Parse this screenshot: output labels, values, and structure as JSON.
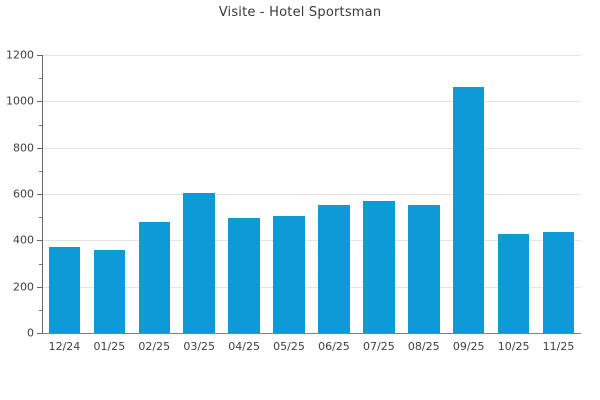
{
  "chart_data": {
    "type": "bar",
    "title": "Visite - Hotel Sportsman",
    "xlabel": "",
    "ylabel": "",
    "categories": [
      "12/24",
      "01/25",
      "02/25",
      "03/25",
      "04/25",
      "05/25",
      "06/25",
      "07/25",
      "08/25",
      "09/25",
      "10/25",
      "11/25"
    ],
    "values": [
      370,
      358,
      478,
      606,
      497,
      506,
      553,
      568,
      554,
      1063,
      427,
      437
    ],
    "ylim": [
      0,
      1200
    ],
    "y_major_ticks": [
      0,
      200,
      400,
      600,
      800,
      1000,
      1200
    ],
    "y_minor_tick_interval": 100,
    "grid": "horizontal-major",
    "legend": "none",
    "bar_color": "#0E9AD6",
    "colors": {
      "background": "#ffffff",
      "text": "#404040",
      "title_text": "#3a3a3a",
      "axis": "#666666",
      "grid": "#e4e4e4"
    }
  }
}
